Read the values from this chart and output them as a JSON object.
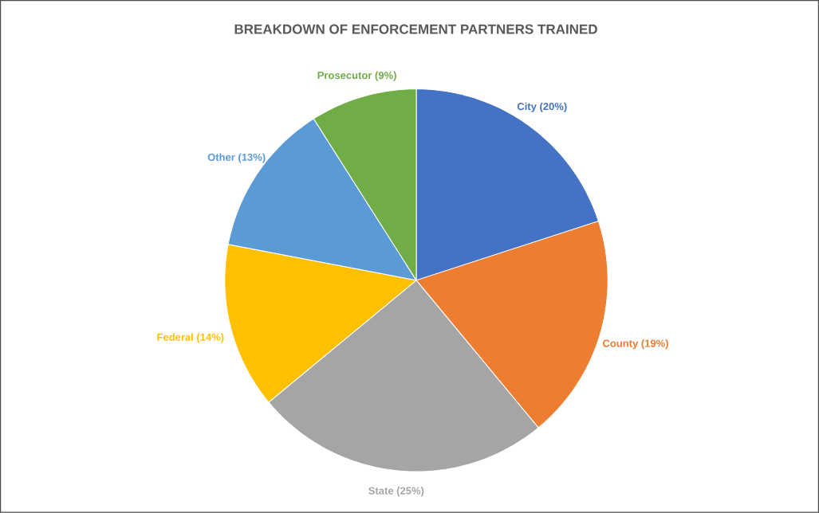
{
  "chart_data": {
    "type": "pie",
    "title": "BREAKDOWN OF ENFORCEMENT PARTNERS TRAINED",
    "categories": [
      "City (20%)",
      "County (19%)",
      "State (25%)",
      "Federal (14%)",
      "Other (13%)",
      "Prosecutor (9%)"
    ],
    "values": [
      20,
      19,
      25,
      14,
      13,
      9
    ],
    "colors": [
      "#4472c4",
      "#ed7d31",
      "#a5a5a5",
      "#ffc000",
      "#5b9bd5",
      "#70ad47"
    ]
  }
}
